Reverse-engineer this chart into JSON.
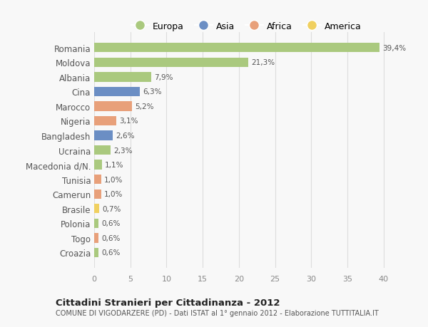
{
  "countries": [
    "Romania",
    "Moldova",
    "Albania",
    "Cina",
    "Marocco",
    "Nigeria",
    "Bangladesh",
    "Ucraina",
    "Macedonia d/N.",
    "Tunisia",
    "Camerun",
    "Brasile",
    "Polonia",
    "Togo",
    "Croazia"
  ],
  "values": [
    39.4,
    21.3,
    7.9,
    6.3,
    5.2,
    3.1,
    2.6,
    2.3,
    1.1,
    1.0,
    1.0,
    0.7,
    0.6,
    0.6,
    0.6
  ],
  "labels": [
    "39,4%",
    "21,3%",
    "7,9%",
    "6,3%",
    "5,2%",
    "3,1%",
    "2,6%",
    "2,3%",
    "1,1%",
    "1,0%",
    "1,0%",
    "0,7%",
    "0,6%",
    "0,6%",
    "0,6%"
  ],
  "colors": [
    "#aac97e",
    "#aac97e",
    "#aac97e",
    "#6b8ec4",
    "#e8a07a",
    "#e8a07a",
    "#6b8ec4",
    "#aac97e",
    "#aac97e",
    "#e8a07a",
    "#e8a07a",
    "#f0d060",
    "#aac97e",
    "#e8a07a",
    "#aac97e"
  ],
  "legend_labels": [
    "Europa",
    "Asia",
    "Africa",
    "America"
  ],
  "legend_colors": [
    "#aac97e",
    "#6b8ec4",
    "#e8a07a",
    "#f0d060"
  ],
  "title": "Cittadini Stranieri per Cittadinanza - 2012",
  "subtitle": "COMUNE DI VIGODARZERE (PD) - Dati ISTAT al 1° gennaio 2012 - Elaborazione TUTTITALIA.IT",
  "xlim": [
    0,
    42
  ],
  "xticks": [
    0,
    5,
    10,
    15,
    20,
    25,
    30,
    35,
    40
  ],
  "background_color": "#f8f8f8",
  "grid_color": "#dddddd",
  "bar_height": 0.65
}
